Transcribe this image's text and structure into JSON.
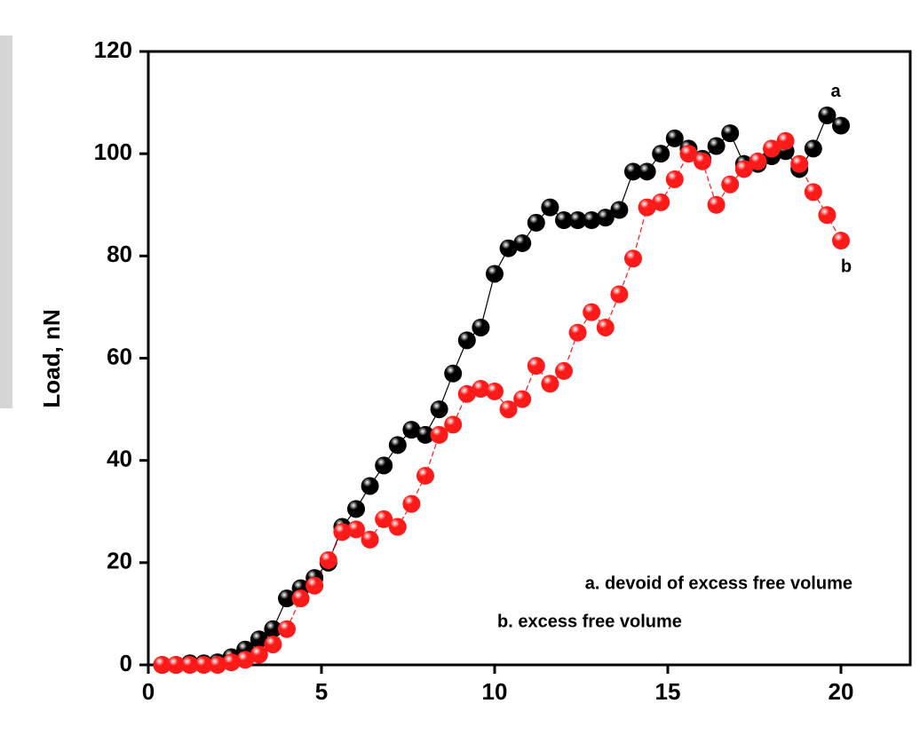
{
  "chart_data": {
    "type": "scatter",
    "y_label": "Load, nN",
    "x": [
      0.4,
      0.8,
      1.2,
      1.6,
      2.0,
      2.4,
      2.8,
      3.2,
      3.6,
      4.0,
      4.4,
      4.8,
      5.2,
      5.6,
      6.0,
      6.4,
      6.8,
      7.2,
      7.6,
      8.0,
      8.4,
      8.8,
      9.2,
      9.6,
      10.0,
      10.4,
      10.8,
      11.2,
      11.6,
      12.0,
      12.4,
      12.8,
      13.2,
      13.6,
      14.0,
      14.4,
      14.8,
      15.2,
      15.6,
      16.0,
      16.4,
      16.8,
      17.2,
      17.6,
      18.0,
      18.4,
      18.8,
      19.2,
      19.6,
      20.0
    ],
    "series": [
      {
        "name": "a. devoid of excess free volume",
        "color": "#000000",
        "label": "a",
        "values": [
          0,
          0,
          0.3,
          0.3,
          0.5,
          1.5,
          3,
          5,
          7,
          13,
          15,
          17,
          20,
          27,
          30.5,
          35,
          39,
          43,
          46,
          45,
          50,
          57,
          63.5,
          66,
          76.5,
          81.5,
          82.5,
          86.5,
          89.5,
          87,
          87,
          87,
          87.5,
          89,
          96.5,
          96.5,
          100,
          103,
          101,
          99,
          101.5,
          104,
          98,
          98,
          99.5,
          100.5,
          97,
          101,
          107.5,
          105.5
        ]
      },
      {
        "name": "b. excess free volume",
        "color": "#ff1a1a",
        "label": "b",
        "values": [
          0,
          0,
          0,
          0,
          0,
          0.5,
          1,
          2,
          4,
          7,
          13,
          15.5,
          20.5,
          26,
          26.5,
          24.5,
          28.5,
          27,
          31.5,
          37,
          45,
          47,
          53,
          54,
          53.5,
          50,
          52,
          58.5,
          55,
          57.5,
          65,
          69,
          66,
          72.5,
          79.5,
          89.5,
          90.5,
          95,
          100,
          98.5,
          90,
          94,
          97,
          98.5,
          101,
          102.5,
          98,
          92.5,
          88,
          83
        ]
      }
    ],
    "xlim": [
      0,
      22
    ],
    "xticks": [
      0,
      5,
      10,
      15,
      20
    ],
    "ylim": [
      0,
      120
    ],
    "yticks": [
      0,
      20,
      40,
      60,
      80,
      100,
      120
    ],
    "legend": "lower right"
  }
}
